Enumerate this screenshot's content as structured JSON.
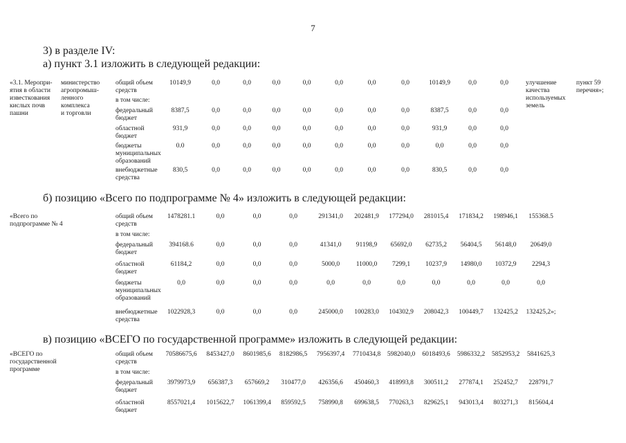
{
  "page_number": "7",
  "intro": {
    "line1": "3) в разделе IV:",
    "line2": "а) пункт 3.1 изложить в следующей редакции:"
  },
  "headings": {
    "b": "б) позицию «Всего по подпрограмме № 4» изложить в следующей редакции:",
    "v": "в) позицию «ВСЕГО по государственной программе» изложить в следующей редакции:"
  },
  "tables": [
    {
      "item": "«3.1. Меропри-\nятия в области\nизвесткования\nкислых почв\nпашни",
      "executor": "министерство\nагропромыш-\nленного\nкомплекса\nи торговли",
      "rows": [
        {
          "label": "общий объем\nсредств",
          "values": [
            "10149,9",
            "0,0",
            "0,0",
            "0,0",
            "0,0",
            "0,0",
            "0,0",
            "0,0",
            "10149,9",
            "0,0",
            "0,0"
          ]
        },
        {
          "label": "в том числе:",
          "values": []
        },
        {
          "label": "федеральный\nбюджет",
          "values": [
            "8387,5",
            "0,0",
            "0,0",
            "0,0",
            "0,0",
            "0,0",
            "0,0",
            "0,0",
            "8387,5",
            "0,0",
            "0,0"
          ]
        },
        {
          "label": "областной\nбюджет",
          "values": [
            "931,9",
            "0,0",
            "0,0",
            "0,0",
            "0,0",
            "0,0",
            "0,0",
            "0,0",
            "931,9",
            "0,0",
            "0,0"
          ]
        },
        {
          "label": "бюджеты\nмуниципальных\nобразований",
          "values": [
            "0.0",
            "0,0",
            "0,0",
            "0,0",
            "0,0",
            "0,0",
            "0,0",
            "0,0",
            "0,0",
            "0,0",
            "0,0"
          ]
        },
        {
          "label": "внебюджетные\nсредства",
          "values": [
            "830,5",
            "0,0",
            "0,0",
            "0,0",
            "0,0",
            "0,0",
            "0,0",
            "0,0",
            "830,5",
            "0,0",
            "0,0"
          ]
        }
      ],
      "result": "улучшение\nкачества\nиспользуемых\nземель",
      "reference": "пункт 59\nперечня»;"
    },
    {
      "item": "«Всего по\nподпрограмме № 4",
      "rows": [
        {
          "label": "общий объем\nсредств",
          "values": [
            "1478281.1",
            "0,0",
            "0,0",
            "0,0",
            "291341,0",
            "202481,9",
            "177294,0",
            "281015,4",
            "171834,2",
            "198946,1",
            "155368.5"
          ]
        },
        {
          "label": "в том числе:",
          "values": []
        },
        {
          "label": "федеральный\nбюджет",
          "values": [
            "394168.6",
            "0,0",
            "0,0",
            "0,0",
            "41341,0",
            "91198,9",
            "65692,0",
            "62735,2",
            "56404,5",
            "56148,0",
            "20649,0"
          ]
        },
        {
          "label": "областной\nбюджет",
          "values": [
            "61184,2",
            "0,0",
            "0,0",
            "0,0",
            "5000,0",
            "11000,0",
            "7299,1",
            "10237,9",
            "14980,0",
            "10372,9",
            "2294,3"
          ]
        },
        {
          "label": "бюджеты\nмуниципальных\nобразований",
          "values": [
            "0,0",
            "0,0",
            "0,0",
            "0,0",
            "0,0",
            "0,0",
            "0,0",
            "0,0",
            "0,0",
            "0,0",
            "0,0"
          ]
        },
        {
          "label": "внебюджетные\nсредства",
          "values": [
            "1022928,3",
            "0,0",
            "0,0",
            "0,0",
            "245000,0",
            "100283,0",
            "104302,9",
            "208042,3",
            "100449,7",
            "132425,2",
            "132425,2»;"
          ]
        }
      ]
    },
    {
      "item": "«ВСЕГО по\nгосударственной\nпрограмме",
      "rows": [
        {
          "label": "общий объем\nсредств",
          "values": [
            "70586675,6",
            "8453427,0",
            "8601985,6",
            "8182986,5",
            "7956397,4",
            "7710434,8",
            "5982040,0",
            "6018493,6",
            "5986332,2",
            "5852953,2",
            "5841625,3"
          ]
        },
        {
          "label": "в том числе:",
          "values": []
        },
        {
          "label": "федеральный\nбюджет",
          "values": [
            "3979973,9",
            "656387,3",
            "657669,2",
            "310477,0",
            "426356,6",
            "450460,3",
            "418993,8",
            "300511,2",
            "277874,1",
            "252452,7",
            "228791,7"
          ]
        },
        {
          "label": "областной\nбюджет",
          "values": [
            "8557021,4",
            "1015622,7",
            "1061399,4",
            "859592,5",
            "758990,8",
            "699638,5",
            "770263,3",
            "829625,1",
            "943013,4",
            "803271,3",
            "815604,4"
          ]
        }
      ]
    }
  ]
}
